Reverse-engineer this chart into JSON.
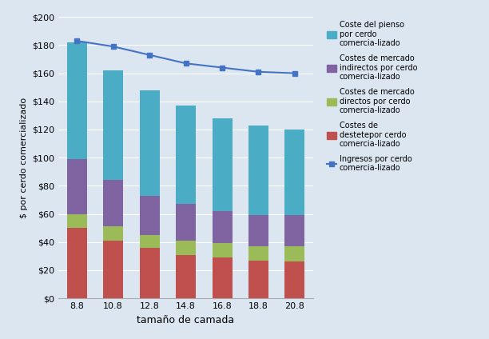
{
  "categories": [
    8.8,
    10.8,
    12.8,
    14.8,
    16.8,
    18.8,
    20.8
  ],
  "cat_labels": [
    "8.8",
    "10.8",
    "12.8",
    "14.8",
    "16.8",
    "18.8",
    "20.8"
  ],
  "destete": [
    50,
    41,
    36,
    31,
    29,
    27,
    26
  ],
  "mercado_directos": [
    10,
    10,
    9,
    10,
    10,
    10,
    11
  ],
  "mercado_indirectos": [
    39,
    33,
    28,
    26,
    23,
    22,
    22
  ],
  "pienso": [
    83,
    78,
    75,
    70,
    66,
    64,
    61
  ],
  "ingresos": [
    183,
    179,
    173,
    167,
    164,
    161,
    160
  ],
  "color_destete": "#c0504d",
  "color_directos": "#9bbb59",
  "color_indirectos": "#8064a2",
  "color_pienso": "#4bacc6",
  "color_ingresos": "#4472c4",
  "ylabel": "$ por cerdo comercializado",
  "xlabel": "tamaño de camada",
  "ylim": [
    0,
    200
  ],
  "yticks": [
    0,
    20,
    40,
    60,
    80,
    100,
    120,
    140,
    160,
    180,
    200
  ],
  "legend_pienso": "Coste del pienso\npor cerdo\ncomercia­lizado",
  "legend_indirectos": "Costes de mercado\nindirectos por cerdo\ncomercia­lizado",
  "legend_directos": "Costes de mercado\ndirectos por cerdo\ncomercia­lizado",
  "legend_destete": "Costes de\ndestetepor cerdo\ncomercia­lizado",
  "legend_ingresos": "Ingresos por cerdo\ncomercia­lizado",
  "background_color": "#dce6f1",
  "fig_bg": "#dce6f1"
}
